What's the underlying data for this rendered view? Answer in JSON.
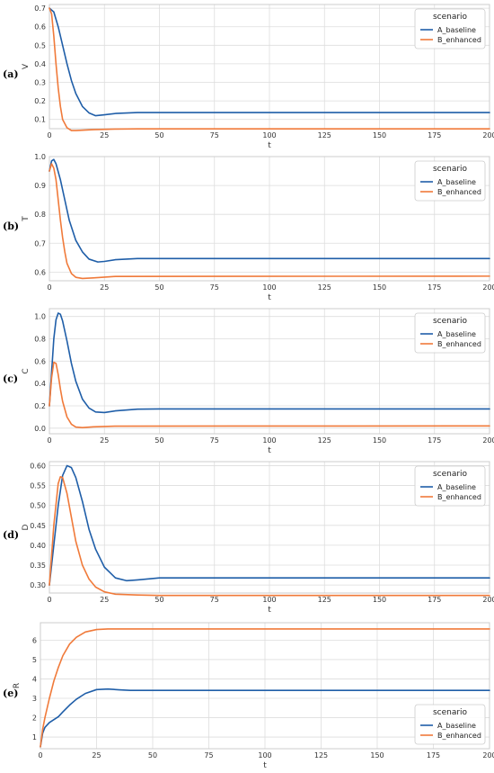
{
  "colors": {
    "A_baseline": "#1f5ea8",
    "B_enhanced": "#f07a3a",
    "grid": "#dddddd",
    "frame": "#cccccc"
  },
  "chart_data": [
    {
      "type": "line",
      "panel_label": "(a)",
      "xlabel": "t",
      "ylabel": "V",
      "xlim": [
        0,
        200
      ],
      "ylim": [
        0.05,
        0.72
      ],
      "xticks": [
        0,
        25,
        50,
        75,
        100,
        125,
        150,
        175,
        200
      ],
      "yticks": [
        0.1,
        0.2,
        0.3,
        0.4,
        0.5,
        0.6,
        0.7
      ],
      "grid": true,
      "legend": {
        "title": "scenario",
        "position": "top-right"
      },
      "series": [
        {
          "name": "A_baseline",
          "x": [
            0,
            2,
            4,
            6,
            8,
            10,
            12,
            15,
            18,
            21,
            25,
            30,
            40,
            50,
            200
          ],
          "y": [
            0.7,
            0.68,
            0.6,
            0.5,
            0.4,
            0.31,
            0.24,
            0.17,
            0.135,
            0.12,
            0.125,
            0.132,
            0.137,
            0.137,
            0.137
          ]
        },
        {
          "name": "B_enhanced",
          "x": [
            0,
            1,
            2,
            3,
            4,
            5,
            6,
            8,
            10,
            12,
            15,
            20,
            30,
            40,
            200
          ],
          "y": [
            0.7,
            0.67,
            0.55,
            0.4,
            0.27,
            0.17,
            0.1,
            0.055,
            0.04,
            0.04,
            0.042,
            0.045,
            0.048,
            0.049,
            0.049
          ]
        }
      ]
    },
    {
      "type": "line",
      "panel_label": "(b)",
      "xlabel": "t",
      "ylabel": "T",
      "xlim": [
        0,
        200
      ],
      "ylim": [
        0.57,
        1.0
      ],
      "xticks": [
        0,
        25,
        50,
        75,
        100,
        125,
        150,
        175,
        200
      ],
      "yticks": [
        0.6,
        0.7,
        0.8,
        0.9,
        1.0
      ],
      "grid": true,
      "legend": {
        "title": "scenario",
        "position": "top-right"
      },
      "series": [
        {
          "name": "A_baseline",
          "x": [
            0,
            1,
            2,
            3,
            5,
            7,
            9,
            12,
            15,
            18,
            22,
            25,
            30,
            40,
            50,
            200
          ],
          "y": [
            0.95,
            0.985,
            0.99,
            0.975,
            0.92,
            0.85,
            0.78,
            0.71,
            0.67,
            0.645,
            0.635,
            0.637,
            0.643,
            0.647,
            0.647,
            0.647
          ]
        },
        {
          "name": "B_enhanced",
          "x": [
            0,
            1,
            2,
            3,
            4,
            5,
            6,
            7,
            8,
            10,
            12,
            15,
            20,
            30,
            200
          ],
          "y": [
            0.95,
            0.975,
            0.96,
            0.92,
            0.85,
            0.78,
            0.72,
            0.67,
            0.63,
            0.595,
            0.582,
            0.578,
            0.58,
            0.585,
            0.586
          ]
        }
      ]
    },
    {
      "type": "line",
      "panel_label": "(c)",
      "xlabel": "t",
      "ylabel": "C",
      "xlim": [
        0,
        200
      ],
      "ylim": [
        -0.05,
        1.07
      ],
      "xticks": [
        0,
        25,
        50,
        75,
        100,
        125,
        150,
        175,
        200
      ],
      "yticks": [
        0.0,
        0.2,
        0.4,
        0.6,
        0.8,
        1.0
      ],
      "grid": true,
      "legend": {
        "title": "scenario",
        "position": "top-right"
      },
      "series": [
        {
          "name": "A_baseline",
          "x": [
            0,
            1,
            2,
            3,
            4,
            5,
            6,
            8,
            10,
            12,
            15,
            18,
            21,
            25,
            30,
            40,
            50,
            200
          ],
          "y": [
            0.2,
            0.5,
            0.8,
            0.97,
            1.03,
            1.02,
            0.96,
            0.78,
            0.58,
            0.42,
            0.26,
            0.18,
            0.145,
            0.14,
            0.155,
            0.17,
            0.172,
            0.172
          ]
        },
        {
          "name": "B_enhanced",
          "x": [
            0,
            1,
            2,
            3,
            4,
            5,
            6,
            8,
            10,
            12,
            15,
            20,
            30,
            200
          ],
          "y": [
            0.2,
            0.45,
            0.59,
            0.58,
            0.48,
            0.35,
            0.24,
            0.1,
            0.035,
            0.01,
            0.005,
            0.012,
            0.018,
            0.02
          ]
        }
      ]
    },
    {
      "type": "line",
      "panel_label": "(d)",
      "xlabel": "t",
      "ylabel": "D",
      "xlim": [
        0,
        200
      ],
      "ylim": [
        0.28,
        0.61
      ],
      "xticks": [
        0,
        25,
        50,
        75,
        100,
        125,
        150,
        175,
        200
      ],
      "yticks": [
        0.3,
        0.35,
        0.4,
        0.45,
        0.5,
        0.55,
        0.6
      ],
      "grid": true,
      "legend": {
        "title": "scenario",
        "position": "top-right"
      },
      "series": [
        {
          "name": "A_baseline",
          "x": [
            0,
            2,
            4,
            6,
            8,
            10,
            12,
            15,
            18,
            21,
            25,
            30,
            35,
            40,
            50,
            200
          ],
          "y": [
            0.3,
            0.4,
            0.5,
            0.575,
            0.6,
            0.595,
            0.57,
            0.51,
            0.44,
            0.39,
            0.345,
            0.318,
            0.311,
            0.313,
            0.318,
            0.318
          ]
        },
        {
          "name": "B_enhanced",
          "x": [
            0,
            2,
            4,
            5,
            6,
            8,
            10,
            12,
            15,
            18,
            21,
            25,
            30,
            40,
            50,
            200
          ],
          "y": [
            0.3,
            0.45,
            0.555,
            0.572,
            0.57,
            0.53,
            0.47,
            0.41,
            0.35,
            0.315,
            0.295,
            0.283,
            0.277,
            0.275,
            0.274,
            0.274
          ]
        }
      ]
    },
    {
      "type": "line",
      "panel_label": "(e)",
      "xlabel": "t",
      "ylabel": "R",
      "xlim": [
        0,
        200
      ],
      "ylim": [
        0.4,
        6.9
      ],
      "xticks": [
        0,
        25,
        50,
        75,
        100,
        125,
        150,
        175,
        200
      ],
      "yticks": [
        1,
        2,
        3,
        4,
        5,
        6
      ],
      "grid": true,
      "legend": {
        "title": "scenario",
        "position": "bottom-right"
      },
      "series": [
        {
          "name": "A_baseline",
          "x": [
            0,
            1,
            2,
            4,
            6,
            8,
            10,
            13,
            16,
            20,
            25,
            30,
            35,
            40,
            50,
            200
          ],
          "y": [
            0.5,
            1.2,
            1.5,
            1.75,
            1.9,
            2.05,
            2.3,
            2.65,
            2.95,
            3.25,
            3.45,
            3.48,
            3.44,
            3.41,
            3.41,
            3.41
          ]
        },
        {
          "name": "B_enhanced",
          "x": [
            0,
            1,
            2,
            4,
            6,
            8,
            10,
            13,
            16,
            20,
            25,
            30,
            40,
            200
          ],
          "y": [
            0.5,
            1.4,
            2.0,
            3.0,
            3.9,
            4.6,
            5.2,
            5.8,
            6.15,
            6.42,
            6.55,
            6.58,
            6.58,
            6.58
          ]
        }
      ]
    }
  ]
}
